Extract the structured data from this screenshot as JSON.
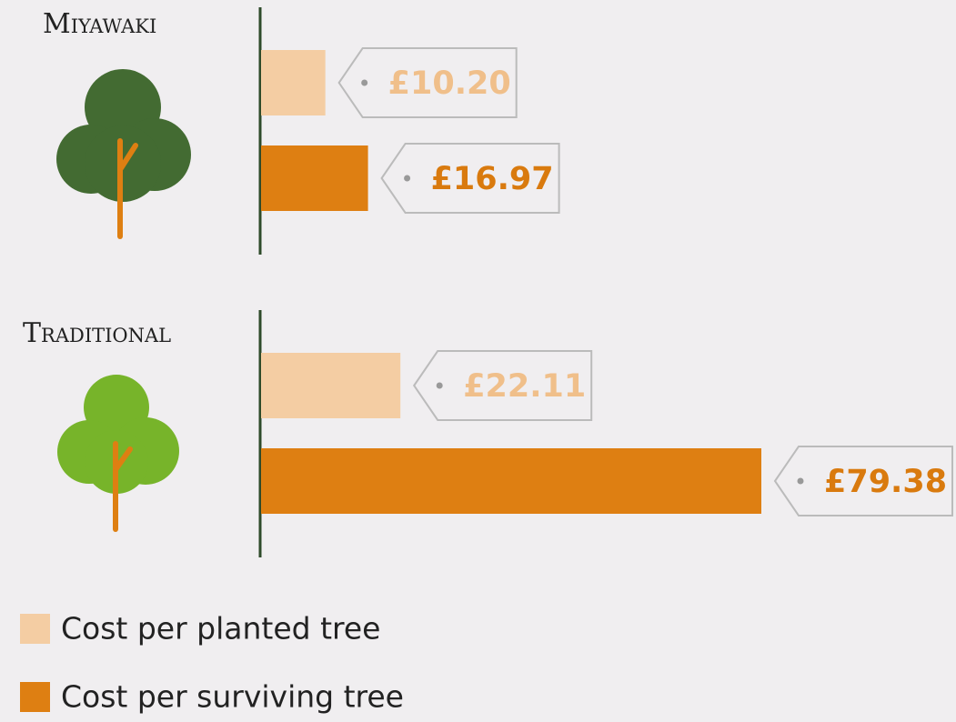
{
  "chart_data": {
    "type": "bar",
    "orientation": "horizontal",
    "categories": [
      "Miyawaki",
      "Traditional"
    ],
    "series": [
      {
        "name": "Cost per planted tree",
        "color": "#f4cda3",
        "label_color": "#f0bf8a",
        "values": [
          10.2,
          22.11
        ],
        "value_labels": [
          "£10.20",
          "£22.11"
        ]
      },
      {
        "name": "Cost per surviving tree",
        "color": "#de7f12",
        "label_color": "#d97a0e",
        "values": [
          16.97,
          79.38
        ],
        "value_labels": [
          "£16.97",
          "£79.38"
        ]
      }
    ]
  }
}
